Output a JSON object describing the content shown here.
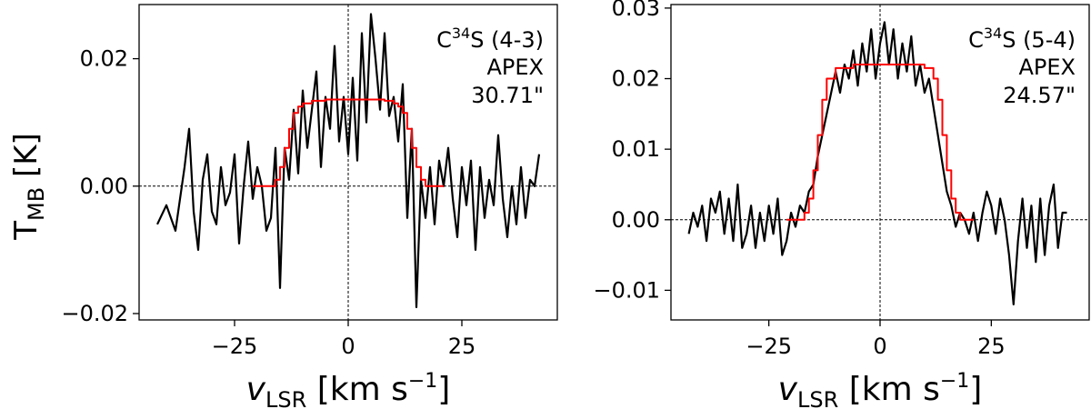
{
  "figure": {
    "ylabel_main": "T",
    "ylabel_sub": "MB",
    "ylabel_unit": " [K]",
    "xlabel_main": "v",
    "xlabel_sub": "LSR",
    "xlabel_unit": " [km s",
    "xlabel_exp": "−1",
    "xlabel_close": "]"
  },
  "chart_data": [
    {
      "type": "line",
      "title": "",
      "xlim": [
        -46,
        46
      ],
      "ylim": [
        -0.021,
        0.0285
      ],
      "xticks": [
        -25,
        0,
        25
      ],
      "xtick_labels": [
        "−25",
        "0",
        "25"
      ],
      "yticks": [
        -0.02,
        0.0,
        0.02
      ],
      "ytick_labels": [
        "−0.02",
        "0.00",
        "0.02"
      ],
      "grid": false,
      "reference_lines": {
        "x": 0,
        "y": 0
      },
      "annotation": {
        "molecule": "C",
        "isotope": "34",
        "species_rest": "S (4-3)",
        "telescope": "APEX",
        "beam": "30.71\""
      },
      "series": [
        {
          "color": "#000000",
          "x": [
            -42,
            -40,
            -38,
            -36,
            -35,
            -34,
            -33,
            -32,
            -31,
            -30,
            -29,
            -28,
            -27,
            -26,
            -25,
            -24,
            -23,
            -22,
            -21,
            -20,
            -19,
            -18,
            -17,
            -16,
            -15,
            -14,
            -13,
            -12,
            -11,
            -10,
            -9,
            -8,
            -7,
            -6,
            -5,
            -4,
            -3,
            -2,
            -1,
            0,
            1,
            2,
            3,
            4,
            5,
            6,
            7,
            8,
            9,
            10,
            11,
            12,
            13,
            14,
            15,
            16,
            17,
            18,
            19,
            20,
            21,
            22,
            23,
            24,
            25,
            26,
            27,
            28,
            29,
            30,
            31,
            32,
            33,
            34,
            35,
            36,
            37,
            38,
            39,
            40,
            41,
            42
          ],
          "values": [
            -0.006,
            -0.003,
            -0.007,
            0.003,
            0.009,
            -0.004,
            -0.01,
            0.001,
            0.005,
            -0.004,
            -0.006,
            0.003,
            -0.003,
            -0.001,
            0.005,
            -0.009,
            0.0,
            0.007,
            -0.002,
            0.003,
            0.0,
            -0.007,
            -0.005,
            0.006,
            -0.016,
            0.006,
            0.001,
            0.012,
            0.002,
            0.015,
            0.006,
            0.012,
            0.018,
            0.003,
            0.014,
            0.009,
            0.022,
            0.007,
            0.014,
            0.005,
            0.017,
            0.004,
            0.024,
            0.01,
            0.027,
            0.02,
            0.012,
            0.024,
            0.011,
            0.014,
            0.007,
            0.016,
            -0.005,
            0.009,
            -0.019,
            0.001,
            -0.005,
            0.003,
            -0.006,
            0.004,
            0.0,
            0.006,
            -0.002,
            -0.008,
            0.003,
            -0.003,
            0.004,
            -0.01,
            0.003,
            -0.005,
            0.001,
            -0.003,
            0.008,
            -0.002,
            -0.008,
            0.0,
            -0.006,
            0.003,
            -0.005,
            0.001,
            0.0,
            0.005
          ]
        },
        {
          "color": "#ff0000",
          "step": true,
          "x": [
            -21,
            -17,
            -16,
            -15,
            -14,
            -13,
            -12,
            -11,
            -10,
            -8,
            -5,
            5,
            8,
            10,
            11,
            12,
            13,
            14,
            15,
            16,
            17,
            21
          ],
          "values": [
            0.0,
            0.0,
            0.001,
            0.003,
            0.006,
            0.009,
            0.0115,
            0.0125,
            0.013,
            0.0134,
            0.0136,
            0.0136,
            0.0134,
            0.013,
            0.0125,
            0.0115,
            0.009,
            0.006,
            0.003,
            0.001,
            0.0,
            0.0
          ]
        }
      ]
    },
    {
      "type": "line",
      "title": "",
      "xlim": [
        -47,
        47
      ],
      "ylim": [
        -0.0142,
        0.0305
      ],
      "xticks": [
        -25,
        0,
        25
      ],
      "xtick_labels": [
        "−25",
        "0",
        "25"
      ],
      "yticks": [
        -0.01,
        0.0,
        0.01,
        0.02,
        0.03
      ],
      "ytick_labels": [
        "−0.01",
        "0.00",
        "0.01",
        "0.02",
        "0.03"
      ],
      "grid": false,
      "reference_lines": {
        "x": 0,
        "y": 0
      },
      "annotation": {
        "molecule": "C",
        "isotope": "34",
        "species_rest": "S (5-4)",
        "telescope": "APEX",
        "beam": "24.57\""
      },
      "series": [
        {
          "color": "#000000",
          "x": [
            -43,
            -42,
            -41,
            -40,
            -39,
            -38,
            -37,
            -36,
            -35,
            -34,
            -33,
            -32,
            -31,
            -30,
            -29,
            -28,
            -27,
            -26,
            -25,
            -24,
            -23,
            -22,
            -21,
            -20,
            -19,
            -18,
            -17,
            -16,
            -15,
            -14,
            -13,
            -12,
            -11,
            -10,
            -9,
            -8,
            -7,
            -6,
            -5,
            -4,
            -3,
            -2,
            -1,
            0,
            1,
            2,
            3,
            4,
            5,
            6,
            7,
            8,
            9,
            10,
            11,
            12,
            13,
            14,
            15,
            16,
            17,
            18,
            19,
            20,
            21,
            22,
            23,
            24,
            25,
            26,
            27,
            28,
            29,
            30,
            31,
            32,
            33,
            34,
            35,
            36,
            37,
            38,
            39,
            40,
            41,
            42
          ],
          "values": [
            -0.002,
            0.001,
            -0.001,
            0.002,
            -0.003,
            0.003,
            0.001,
            0.004,
            -0.002,
            0.003,
            -0.003,
            0.005,
            -0.004,
            -0.002,
            0.002,
            -0.004,
            0.001,
            -0.003,
            0.002,
            -0.002,
            0.003,
            -0.005,
            -0.003,
            0.001,
            -0.001,
            0.002,
            0.001,
            0.004,
            0.005,
            0.009,
            0.012,
            0.015,
            0.018,
            0.021,
            0.018,
            0.022,
            0.02,
            0.024,
            0.019,
            0.025,
            0.021,
            0.027,
            0.02,
            0.025,
            0.028,
            0.022,
            0.027,
            0.02,
            0.025,
            0.021,
            0.026,
            0.019,
            0.022,
            0.018,
            0.02,
            0.016,
            0.012,
            0.008,
            0.004,
            0.002,
            -0.001,
            0.001,
            0.0,
            -0.002,
            0.001,
            -0.003,
            0.001,
            0.004,
            0.002,
            -0.002,
            0.003,
            0.0,
            -0.005,
            -0.012,
            -0.003,
            0.003,
            -0.004,
            0.002,
            -0.006,
            0.003,
            -0.005,
            0.002,
            0.005,
            -0.004,
            0.001,
            0.001
          ]
        },
        {
          "color": "#ff0000",
          "step": true,
          "x": [
            -21,
            -18,
            -17,
            -16,
            -15,
            -14,
            -13,
            -12,
            -10,
            -6,
            6,
            10,
            12,
            13,
            14,
            15,
            16,
            17,
            18,
            21
          ],
          "values": [
            0.0,
            0.0,
            0.001,
            0.003,
            0.007,
            0.012,
            0.017,
            0.02,
            0.0215,
            0.022,
            0.022,
            0.0215,
            0.02,
            0.017,
            0.012,
            0.007,
            0.003,
            0.001,
            0.0,
            0.0
          ]
        }
      ]
    }
  ]
}
